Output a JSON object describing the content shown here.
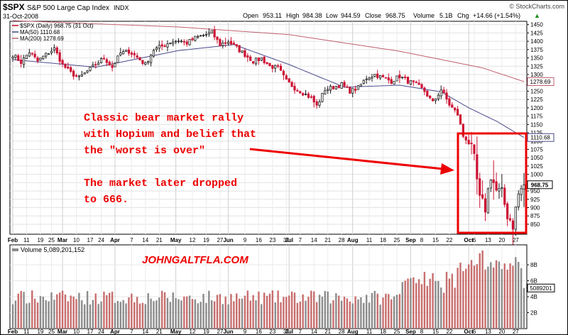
{
  "header": {
    "symbol": "$SPX",
    "name": "S&P 500 Large Cap Index",
    "exchange": "INDX",
    "date": "31-Oct-2008",
    "open_label": "Open",
    "open": "953.11",
    "high_label": "High",
    "high": "984.38",
    "low_label": "Low",
    "low": "944.59",
    "close_label": "Close",
    "close": "968.75",
    "volume_label": "Volume",
    "volume": "5.1B",
    "chg_label": "Chg",
    "chg": "+14.66 (+1.54%)",
    "watermark": "© StockCharts.com"
  },
  "legend": {
    "price": "$SPX (Daily) 968.75 (31 Oct)",
    "ma50": "MA(50) 1110.68",
    "ma200": "MA(200) 1278.69"
  },
  "annotation": {
    "line1": "Classic bear market rally",
    "line2": "with Hopium and belief that",
    "line3": "the \"worst is over\"",
    "line4": "The market later dropped",
    "line5": "to 666."
  },
  "volume_panel": {
    "label": "Volume 5,089,201,152",
    "watermark": "JOHNGALTFLA.COM",
    "last_label": "5089201"
  },
  "colors": {
    "up": "#1a1a1a",
    "down": "#cc1133",
    "ma50": "#4a4a8c",
    "ma200": "#c06070",
    "annotation": "#ee0000",
    "vol_up": "#8c8c8c",
    "vol_down": "#c86e6e"
  },
  "chart_data": {
    "type": "candlestick",
    "title": "$SPX S&P 500 Large Cap Index INDX",
    "ylim": [
      820,
      1460
    ],
    "y_ticks": [
      850,
      875,
      900,
      925,
      950,
      975,
      1000,
      1025,
      1050,
      1075,
      1100,
      1125,
      1150,
      1175,
      1200,
      1225,
      1250,
      1275,
      1300,
      1325,
      1350,
      1375,
      1400,
      1425,
      1450
    ],
    "last_value_label": "968.75",
    "ma50_label": "1110.68",
    "ma200_label": "1278.69",
    "x_tick_labels": [
      {
        "day": 0,
        "label": "Feb",
        "major": true
      },
      {
        "day": 5,
        "label": "11"
      },
      {
        "day": 10,
        "label": "19"
      },
      {
        "day": 14,
        "label": "25"
      },
      {
        "day": 18,
        "label": "Mar",
        "major": true
      },
      {
        "day": 23,
        "label": "10"
      },
      {
        "day": 28,
        "label": "17"
      },
      {
        "day": 32,
        "label": "24"
      },
      {
        "day": 37,
        "label": "Apr",
        "major": true
      },
      {
        "day": 43,
        "label": "7"
      },
      {
        "day": 48,
        "label": "14"
      },
      {
        "day": 53,
        "label": "21"
      },
      {
        "day": 59,
        "label": "May",
        "major": true
      },
      {
        "day": 65,
        "label": "12"
      },
      {
        "day": 70,
        "label": "19"
      },
      {
        "day": 75,
        "label": "27"
      },
      {
        "day": 78,
        "label": "Jun",
        "major": true
      },
      {
        "day": 84,
        "label": "9"
      },
      {
        "day": 89,
        "label": "16"
      },
      {
        "day": 94,
        "label": "23"
      },
      {
        "day": 99,
        "label": "30"
      },
      {
        "day": 100,
        "label": "Jul",
        "major": true
      },
      {
        "day": 104,
        "label": "7"
      },
      {
        "day": 109,
        "label": "14"
      },
      {
        "day": 114,
        "label": "21"
      },
      {
        "day": 119,
        "label": "28"
      },
      {
        "day": 123,
        "label": "Aug",
        "major": true
      },
      {
        "day": 129,
        "label": "11"
      },
      {
        "day": 134,
        "label": "18"
      },
      {
        "day": 139,
        "label": "25"
      },
      {
        "day": 144,
        "label": "Sep",
        "major": true
      },
      {
        "day": 148,
        "label": "8"
      },
      {
        "day": 153,
        "label": "15"
      },
      {
        "day": 158,
        "label": "22"
      },
      {
        "day": 165,
        "label": "Oct",
        "major": true
      },
      {
        "day": 167,
        "label": "6"
      },
      {
        "day": 172,
        "label": "13"
      },
      {
        "day": 177,
        "label": "20"
      },
      {
        "day": 182,
        "label": "27"
      }
    ],
    "volume_ticks": [
      "2B",
      "4B",
      "6B",
      "8B"
    ],
    "volume_last_billions": 5.09,
    "anchors": [
      {
        "day": 0,
        "close": 1360
      },
      {
        "day": 3,
        "close": 1337
      },
      {
        "day": 6,
        "close": 1368
      },
      {
        "day": 9,
        "close": 1340
      },
      {
        "day": 12,
        "close": 1360
      },
      {
        "day": 15,
        "close": 1378
      },
      {
        "day": 18,
        "close": 1330
      },
      {
        "day": 21,
        "close": 1305
      },
      {
        "day": 24,
        "close": 1290
      },
      {
        "day": 27,
        "close": 1310
      },
      {
        "day": 30,
        "close": 1330
      },
      {
        "day": 33,
        "close": 1350
      },
      {
        "day": 36,
        "close": 1322
      },
      {
        "day": 39,
        "close": 1364
      },
      {
        "day": 42,
        "close": 1370
      },
      {
        "day": 45,
        "close": 1352
      },
      {
        "day": 48,
        "close": 1330
      },
      {
        "day": 51,
        "close": 1375
      },
      {
        "day": 54,
        "close": 1385
      },
      {
        "day": 57,
        "close": 1398
      },
      {
        "day": 60,
        "close": 1403
      },
      {
        "day": 63,
        "close": 1395
      },
      {
        "day": 66,
        "close": 1410
      },
      {
        "day": 69,
        "close": 1418
      },
      {
        "day": 72,
        "close": 1426
      },
      {
        "day": 75,
        "close": 1390
      },
      {
        "day": 78,
        "close": 1400
      },
      {
        "day": 81,
        "close": 1380
      },
      {
        "day": 84,
        "close": 1360
      },
      {
        "day": 87,
        "close": 1340
      },
      {
        "day": 90,
        "close": 1348
      },
      {
        "day": 93,
        "close": 1325
      },
      {
        "day": 96,
        "close": 1320
      },
      {
        "day": 99,
        "close": 1280
      },
      {
        "day": 102,
        "close": 1260
      },
      {
        "day": 105,
        "close": 1245
      },
      {
        "day": 108,
        "close": 1230
      },
      {
        "day": 110,
        "close": 1205
      },
      {
        "day": 113,
        "close": 1255
      },
      {
        "day": 116,
        "close": 1262
      },
      {
        "day": 119,
        "close": 1270
      },
      {
        "day": 122,
        "close": 1250
      },
      {
        "day": 125,
        "close": 1260
      },
      {
        "day": 128,
        "close": 1290
      },
      {
        "day": 131,
        "close": 1300
      },
      {
        "day": 134,
        "close": 1290
      },
      {
        "day": 137,
        "close": 1280
      },
      {
        "day": 140,
        "close": 1295
      },
      {
        "day": 143,
        "close": 1280
      },
      {
        "day": 146,
        "close": 1270
      },
      {
        "day": 149,
        "close": 1250
      },
      {
        "day": 152,
        "close": 1215
      },
      {
        "day": 155,
        "close": 1255
      },
      {
        "day": 158,
        "close": 1210
      },
      {
        "day": 161,
        "close": 1180
      },
      {
        "day": 163,
        "close": 1115
      },
      {
        "day": 165,
        "close": 1100
      },
      {
        "day": 167,
        "close": 1040
      },
      {
        "day": 169,
        "close": 920
      },
      {
        "day": 171,
        "close": 900
      },
      {
        "day": 173,
        "close": 1000
      },
      {
        "day": 175,
        "close": 950
      },
      {
        "day": 177,
        "close": 940
      },
      {
        "day": 179,
        "close": 880
      },
      {
        "day": 181,
        "close": 850
      },
      {
        "day": 183,
        "close": 940
      },
      {
        "day": 185,
        "close": 968
      }
    ],
    "ma50_anchors": [
      {
        "day": 0,
        "v": 1345
      },
      {
        "day": 30,
        "v": 1322
      },
      {
        "day": 60,
        "v": 1372
      },
      {
        "day": 80,
        "v": 1390
      },
      {
        "day": 100,
        "v": 1330
      },
      {
        "day": 120,
        "v": 1262
      },
      {
        "day": 140,
        "v": 1268
      },
      {
        "day": 155,
        "v": 1248
      },
      {
        "day": 165,
        "v": 1200
      },
      {
        "day": 175,
        "v": 1160
      },
      {
        "day": 185,
        "v": 1110.68
      }
    ],
    "ma200_anchors": [
      {
        "day": 0,
        "v": 1462
      },
      {
        "day": 60,
        "v": 1443
      },
      {
        "day": 100,
        "v": 1420
      },
      {
        "day": 140,
        "v": 1370
      },
      {
        "day": 170,
        "v": 1320
      },
      {
        "day": 185,
        "v": 1278.69
      }
    ]
  }
}
